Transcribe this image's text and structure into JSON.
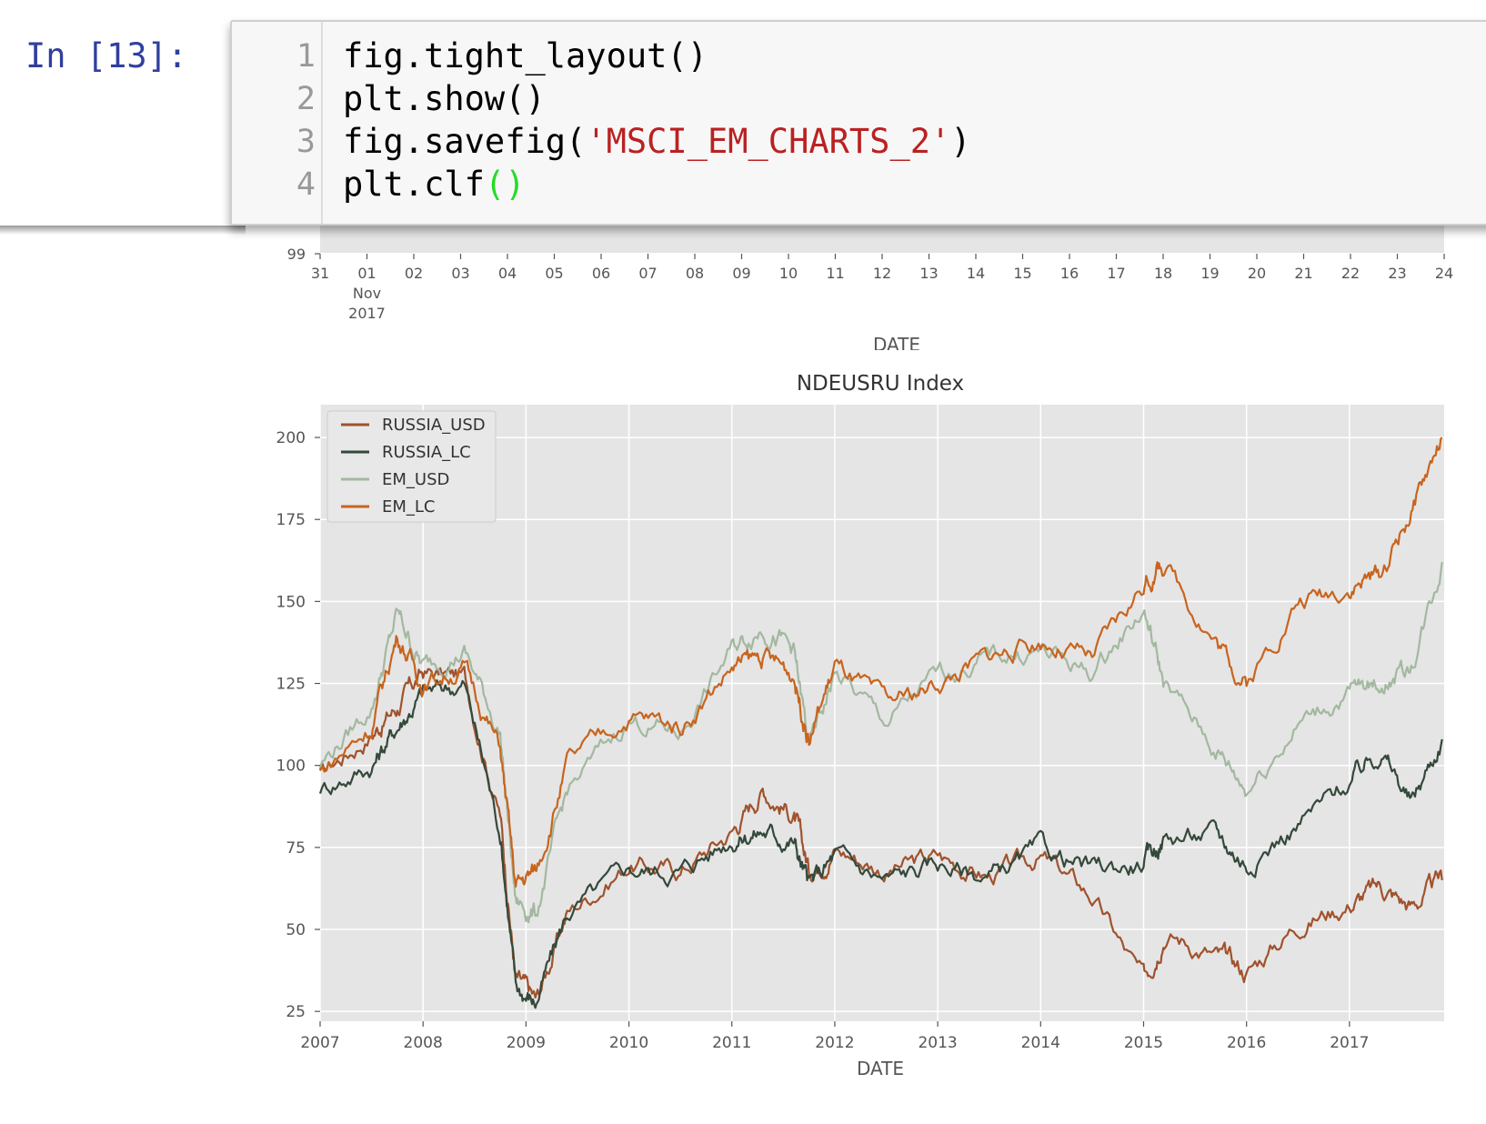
{
  "prompt": "In [13]:",
  "code_lines": [
    {
      "num": "1",
      "parts": [
        {
          "t": "fig.tight_layout()",
          "c": ""
        }
      ]
    },
    {
      "num": "2",
      "parts": [
        {
          "t": "plt.show()",
          "c": ""
        }
      ]
    },
    {
      "num": "3",
      "parts": [
        {
          "t": "fig.savefig(",
          "c": ""
        },
        {
          "t": "'MSCI_EM_CHARTS_2'",
          "c": "str"
        },
        {
          "t": ")",
          "c": ""
        }
      ]
    },
    {
      "num": "4",
      "parts": [
        {
          "t": "plt.clf",
          "c": ""
        },
        {
          "t": "()",
          "c": "par"
        }
      ]
    }
  ],
  "colors": {
    "prompt": "#303f9f",
    "string": "#ba2121",
    "paren": "#22dd22",
    "bg_plot": "#e5e5e5"
  },
  "top_chart": {
    "ytick": "99",
    "xticks": [
      "31",
      "01",
      "02",
      "03",
      "04",
      "05",
      "06",
      "07",
      "08",
      "09",
      "10",
      "11",
      "12",
      "13",
      "14",
      "15",
      "16",
      "17",
      "18",
      "19",
      "20",
      "21",
      "22",
      "23",
      "24"
    ],
    "xtick_sub": [
      "Nov",
      "2017"
    ],
    "xlabel": "DATE"
  },
  "chart_data": {
    "type": "line",
    "title": "NDEUSRU Index",
    "xlabel": "DATE",
    "ylabel": "",
    "x": [
      2007,
      2007.5,
      2007.75,
      2008,
      2008.4,
      2008.75,
      2008.9,
      2009.1,
      2009.4,
      2010,
      2010.5,
      2011,
      2011.3,
      2011.6,
      2011.75,
      2012,
      2012.5,
      2013,
      2013.5,
      2014,
      2014.5,
      2015,
      2015.2,
      2015.7,
      2016,
      2016.5,
      2017,
      2017.3,
      2017.6,
      2017.9
    ],
    "xlim": [
      2007,
      2017.92
    ],
    "ylim": [
      22,
      210
    ],
    "xticks": [
      "2007",
      "2008",
      "2009",
      "2010",
      "2011",
      "2012",
      "2013",
      "2014",
      "2015",
      "2016",
      "2017"
    ],
    "yticks": [
      25,
      50,
      75,
      100,
      125,
      150,
      175,
      200
    ],
    "grid": true,
    "legend_position": "top-left",
    "series": [
      {
        "name": "RUSSIA_USD",
        "color": "#a0522d",
        "values": [
          97,
          110,
          118,
          128,
          127,
          85,
          35,
          28,
          55,
          70,
          68,
          80,
          93,
          85,
          68,
          75,
          68,
          72,
          66,
          72,
          60,
          34,
          50,
          42,
          37,
          52,
          58,
          63,
          57,
          65
        ]
      },
      {
        "name": "RUSSIA_LC",
        "color": "#34493a",
        "values": [
          93,
          100,
          112,
          122,
          125,
          80,
          32,
          28,
          55,
          68,
          68,
          78,
          80,
          77,
          63,
          72,
          65,
          70,
          66,
          74,
          68,
          70,
          78,
          79,
          70,
          82,
          95,
          105,
          88,
          108
        ]
      },
      {
        "name": "EM_USD",
        "color": "#a3b8a0",
        "values": [
          100,
          118,
          146,
          130,
          135,
          110,
          58,
          55,
          92,
          114,
          110,
          135,
          143,
          135,
          105,
          128,
          113,
          127,
          133,
          135,
          128,
          148,
          125,
          105,
          93,
          113,
          122,
          125,
          130,
          162
        ]
      },
      {
        "name": "EM_LC",
        "color": "#c8641e",
        "values": [
          98,
          112,
          140,
          125,
          130,
          105,
          63,
          68,
          100,
          115,
          112,
          130,
          133,
          128,
          108,
          130,
          118,
          125,
          133,
          138,
          132,
          155,
          162,
          138,
          125,
          150,
          155,
          158,
          178,
          200
        ]
      }
    ]
  }
}
